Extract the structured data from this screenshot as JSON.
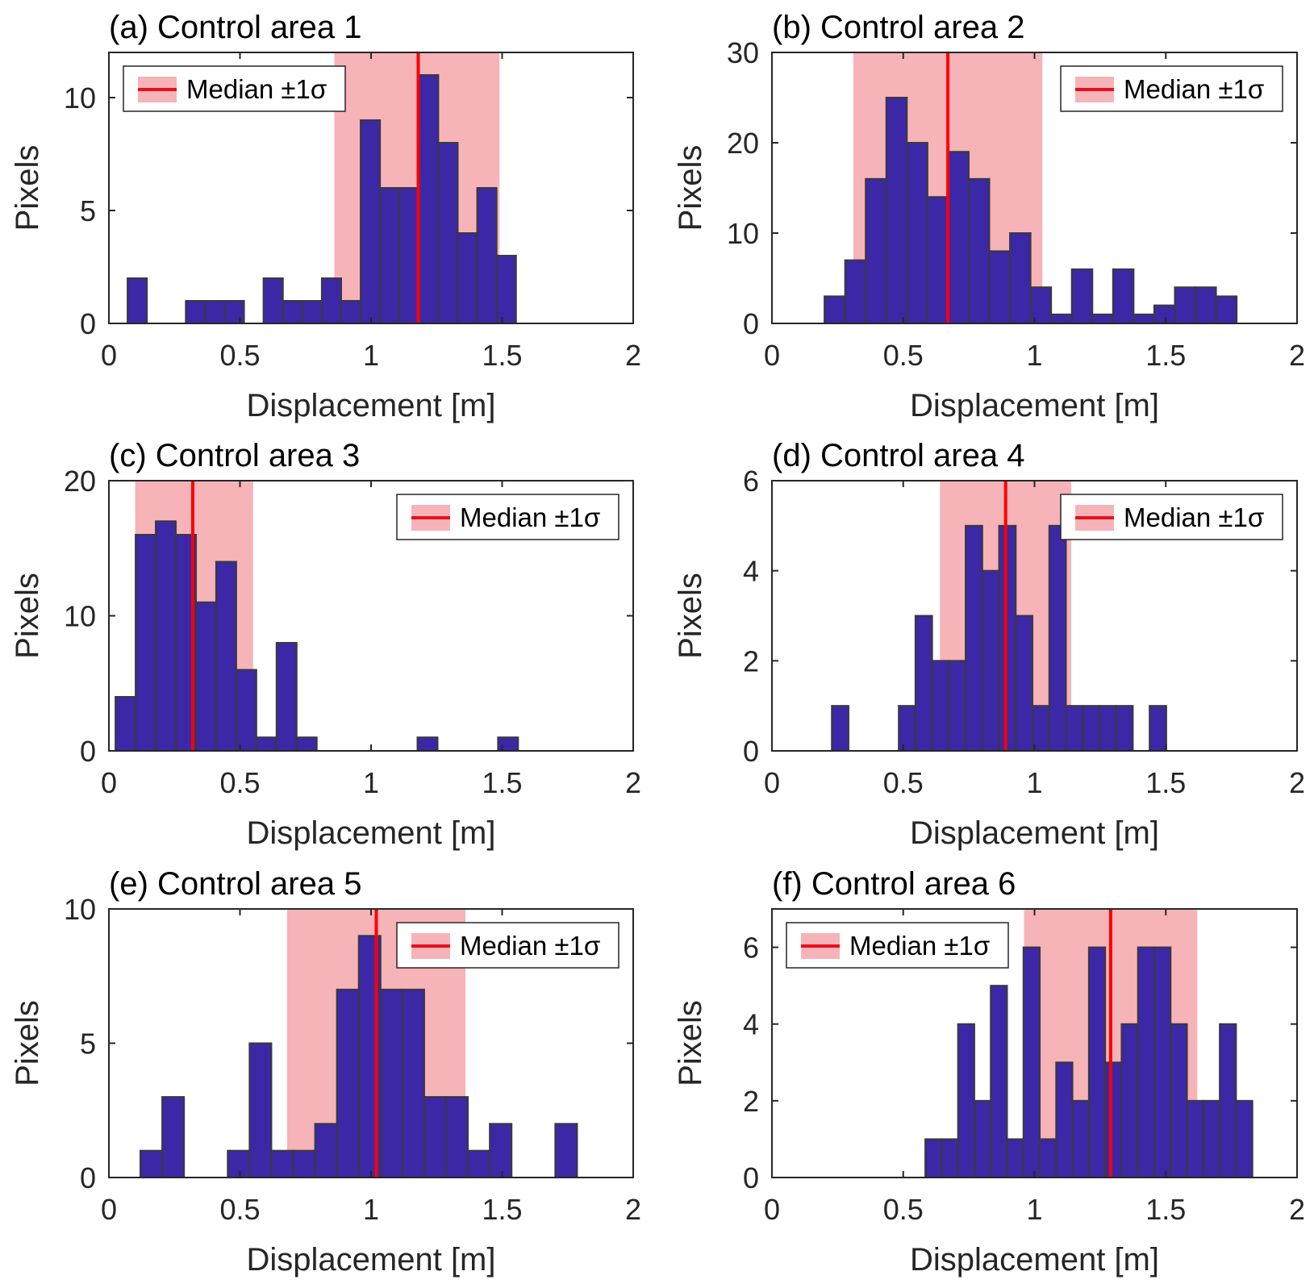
{
  "figure": {
    "colors": {
      "bar_fill": "#3c27a6",
      "bar_edge": "#3a3a3a",
      "band_fill": "#f6b3b8",
      "median_line": "#ff0000",
      "axis": "#262626"
    }
  },
  "chart_data": [
    {
      "type": "bar",
      "title": "(a) Control area 1",
      "xlabel": "Displacement [m]",
      "ylabel": "Pixels",
      "xlim": [
        0,
        2
      ],
      "ylim": [
        0,
        12
      ],
      "xticks": [
        0,
        0.5,
        1,
        1.5,
        2
      ],
      "xtick_labels": [
        "0",
        "0.5",
        "1",
        "1.5",
        "2"
      ],
      "yticks": [
        0,
        5,
        10
      ],
      "ytick_labels": [
        "0",
        "5",
        "10"
      ],
      "bin_start": 0.071,
      "bin_width": 0.0741,
      "values": [
        2,
        0,
        0,
        1,
        1,
        1,
        0,
        2,
        1,
        1,
        2,
        1,
        9,
        6,
        6,
        11,
        8,
        4,
        6,
        3
      ],
      "median": 1.18,
      "sigma_band": [
        0.86,
        1.49
      ],
      "legend": {
        "label": "Median ±1σ",
        "position": "top-left"
      }
    },
    {
      "type": "bar",
      "title": "(b) Control area 2",
      "xlabel": "Displacement [m]",
      "ylabel": "Pixels",
      "xlim": [
        0,
        2
      ],
      "ylim": [
        0,
        30
      ],
      "xticks": [
        0,
        0.5,
        1,
        1.5,
        2
      ],
      "xtick_labels": [
        "0",
        "0.5",
        "1",
        "1.5",
        "2"
      ],
      "yticks": [
        0,
        10,
        20,
        30
      ],
      "ytick_labels": [
        "0",
        "10",
        "20",
        "30"
      ],
      "bin_start": 0.2,
      "bin_width": 0.0785,
      "values": [
        3,
        7,
        16,
        25,
        20,
        14,
        19,
        16,
        8,
        10,
        4,
        1,
        6,
        1,
        6,
        1,
        2,
        4,
        4,
        3
      ],
      "median": 0.67,
      "sigma_band": [
        0.31,
        1.03
      ],
      "legend": {
        "label": "Median ±1σ",
        "position": "top-right"
      }
    },
    {
      "type": "bar",
      "title": "(c) Control area 3",
      "xlabel": "Displacement [m]",
      "ylabel": "Pixels",
      "xlim": [
        0,
        2
      ],
      "ylim": [
        0,
        20
      ],
      "xticks": [
        0,
        0.5,
        1,
        1.5,
        2
      ],
      "xtick_labels": [
        "0",
        "0.5",
        "1",
        "1.5",
        "2"
      ],
      "yticks": [
        0,
        10,
        20
      ],
      "ytick_labels": [
        "0",
        "10",
        "20"
      ],
      "bin_start": 0.025,
      "bin_width": 0.0768,
      "values": [
        4,
        16,
        17,
        16,
        11,
        14,
        6,
        1,
        8,
        1,
        0,
        0,
        0,
        0,
        0,
        1,
        0,
        0,
        0,
        1
      ],
      "median": 0.32,
      "sigma_band": [
        0.1,
        0.55
      ],
      "legend": {
        "label": "Median ±1σ",
        "position": "top-right"
      }
    },
    {
      "type": "bar",
      "title": "(d) Control area 4",
      "xlabel": "Displacement [m]",
      "ylabel": "Pixels",
      "xlim": [
        0,
        2
      ],
      "ylim": [
        0,
        6
      ],
      "xticks": [
        0,
        0.5,
        1,
        1.5,
        2
      ],
      "xtick_labels": [
        "0",
        "0.5",
        "1",
        "1.5",
        "2"
      ],
      "yticks": [
        0,
        2,
        4,
        6
      ],
      "ytick_labels": [
        "0",
        "2",
        "4",
        "6"
      ],
      "bin_start": 0.228,
      "bin_width": 0.0637,
      "values": [
        1,
        0,
        0,
        0,
        1,
        3,
        2,
        2,
        5,
        4,
        5,
        3,
        1,
        5,
        1,
        1,
        1,
        1,
        0,
        1
      ],
      "median": 0.89,
      "sigma_band": [
        0.64,
        1.14
      ],
      "legend": {
        "label": "Median ±1σ",
        "position": "top-right"
      }
    },
    {
      "type": "bar",
      "title": "(e) Control area 5",
      "xlabel": "Displacement [m]",
      "ylabel": "Pixels",
      "xlim": [
        0,
        2
      ],
      "ylim": [
        0,
        10
      ],
      "xticks": [
        0,
        0.5,
        1,
        1.5,
        2
      ],
      "xtick_labels": [
        "0",
        "0.5",
        "1",
        "1.5",
        "2"
      ],
      "yticks": [
        0,
        5,
        10
      ],
      "ytick_labels": [
        "0",
        "5",
        "10"
      ],
      "bin_start": 0.12,
      "bin_width": 0.0833,
      "values": [
        1,
        3,
        0,
        0,
        1,
        5,
        1,
        1,
        2,
        7,
        9,
        7,
        7,
        3,
        3,
        1,
        2,
        0,
        0,
        2
      ],
      "median": 1.02,
      "sigma_band": [
        0.68,
        1.36
      ],
      "legend": {
        "label": "Median ±1σ",
        "position": "top-right"
      }
    },
    {
      "type": "bar",
      "title": "(f) Control area 6",
      "xlabel": "Displacement [m]",
      "ylabel": "Pixels",
      "xlim": [
        0,
        2
      ],
      "ylim": [
        0,
        7
      ],
      "xticks": [
        0,
        0.5,
        1,
        1.5,
        2
      ],
      "xtick_labels": [
        "0",
        "0.5",
        "1",
        "1.5",
        "2"
      ],
      "yticks": [
        0,
        2,
        4,
        6
      ],
      "ytick_labels": [
        "0",
        "2",
        "4",
        "6"
      ],
      "bin_start": 0.584,
      "bin_width": 0.0623,
      "values": [
        1,
        1,
        4,
        2,
        5,
        1,
        6,
        1,
        3,
        2,
        6,
        3,
        4,
        6,
        6,
        4,
        2,
        2,
        4,
        2
      ],
      "median": 1.29,
      "sigma_band": [
        0.96,
        1.62
      ],
      "legend": {
        "label": "Median ±1σ",
        "position": "top-left"
      }
    }
  ]
}
